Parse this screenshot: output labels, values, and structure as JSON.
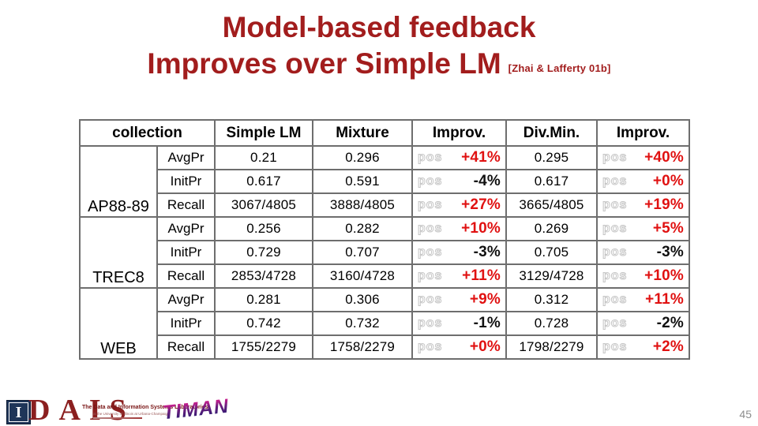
{
  "slide": {
    "title_line1": "Model-based feedback",
    "title_line2": "Improves over Simple LM",
    "citation": "[Zhai & Lafferty 01b]",
    "page_number": "45"
  },
  "table": {
    "headers": [
      "collection",
      "Simple LM",
      "Mixture",
      "Improv.",
      "Div.Min.",
      "Improv."
    ],
    "pos_label": "pos",
    "groups": [
      {
        "collection": "AP88-89",
        "rows": [
          {
            "metric": "AvgPr",
            "simple_lm": "0.21",
            "mixture": "0.296",
            "improv_mixture": {
              "text": "+41%",
              "color": "red"
            },
            "div_min": "0.295",
            "improv_divmin": {
              "text": "+40%",
              "color": "red"
            }
          },
          {
            "metric": "InitPr",
            "simple_lm": "0.617",
            "mixture": "0.591",
            "improv_mixture": {
              "text": "-4%",
              "color": "black"
            },
            "div_min": "0.617",
            "improv_divmin": {
              "text": "+0%",
              "color": "red"
            }
          },
          {
            "metric": "Recall",
            "simple_lm": "3067/4805",
            "mixture": "3888/4805",
            "improv_mixture": {
              "text": "+27%",
              "color": "red"
            },
            "div_min": "3665/4805",
            "improv_divmin": {
              "text": "+19%",
              "color": "red"
            }
          }
        ]
      },
      {
        "collection": "TREC8",
        "rows": [
          {
            "metric": "AvgPr",
            "simple_lm": "0.256",
            "mixture": "0.282",
            "improv_mixture": {
              "text": "+10%",
              "color": "red"
            },
            "div_min": "0.269",
            "improv_divmin": {
              "text": "+5%",
              "color": "red"
            }
          },
          {
            "metric": "InitPr",
            "simple_lm": "0.729",
            "mixture": "0.707",
            "improv_mixture": {
              "text": "-3%",
              "color": "black"
            },
            "div_min": "0.705",
            "improv_divmin": {
              "text": "-3%",
              "color": "black"
            }
          },
          {
            "metric": "Recall",
            "simple_lm": "2853/4728",
            "mixture": "3160/4728",
            "improv_mixture": {
              "text": "+11%",
              "color": "red"
            },
            "div_min": "3129/4728",
            "improv_divmin": {
              "text": "+10%",
              "color": "red"
            }
          }
        ]
      },
      {
        "collection": "WEB",
        "rows": [
          {
            "metric": "AvgPr",
            "simple_lm": "0.281",
            "mixture": "0.306",
            "improv_mixture": {
              "text": "+9%",
              "color": "red"
            },
            "div_min": "0.312",
            "improv_divmin": {
              "text": "+11%",
              "color": "red"
            }
          },
          {
            "metric": "InitPr",
            "simple_lm": "0.742",
            "mixture": "0.732",
            "improv_mixture": {
              "text": "-1%",
              "color": "black"
            },
            "div_min": "0.728",
            "improv_divmin": {
              "text": "-2%",
              "color": "black"
            }
          },
          {
            "metric": "Recall",
            "simple_lm": "1755/2279",
            "mixture": "1758/2279",
            "improv_mixture": {
              "text": "+0%",
              "color": "red"
            },
            "div_min": "1798/2279",
            "improv_divmin": {
              "text": "+2%",
              "color": "red"
            }
          }
        ]
      }
    ]
  },
  "footer": {
    "dais": {
      "monogram": "I",
      "acronym": "DAIS",
      "tagline": "The Data and Information Systems Laboratories",
      "fineprint": "at the University of Illinois at Urbana-Champaign"
    },
    "timan": "TIMAN"
  },
  "colors": {
    "title_red": "#A21D1D",
    "improv_red": "#E01111",
    "improv_black": "#111111",
    "table_border_inner": "#6e6e6e",
    "table_border_outer": "#4a4a4a",
    "pos_outline_gray": "#c6c6c6",
    "dais_maroon": "#8B1F1F",
    "dais_navy": "#1F3558",
    "timan_magenta": "#e02092",
    "timan_navy": "#231a70",
    "page_number_gray": "#8d8d8d"
  }
}
